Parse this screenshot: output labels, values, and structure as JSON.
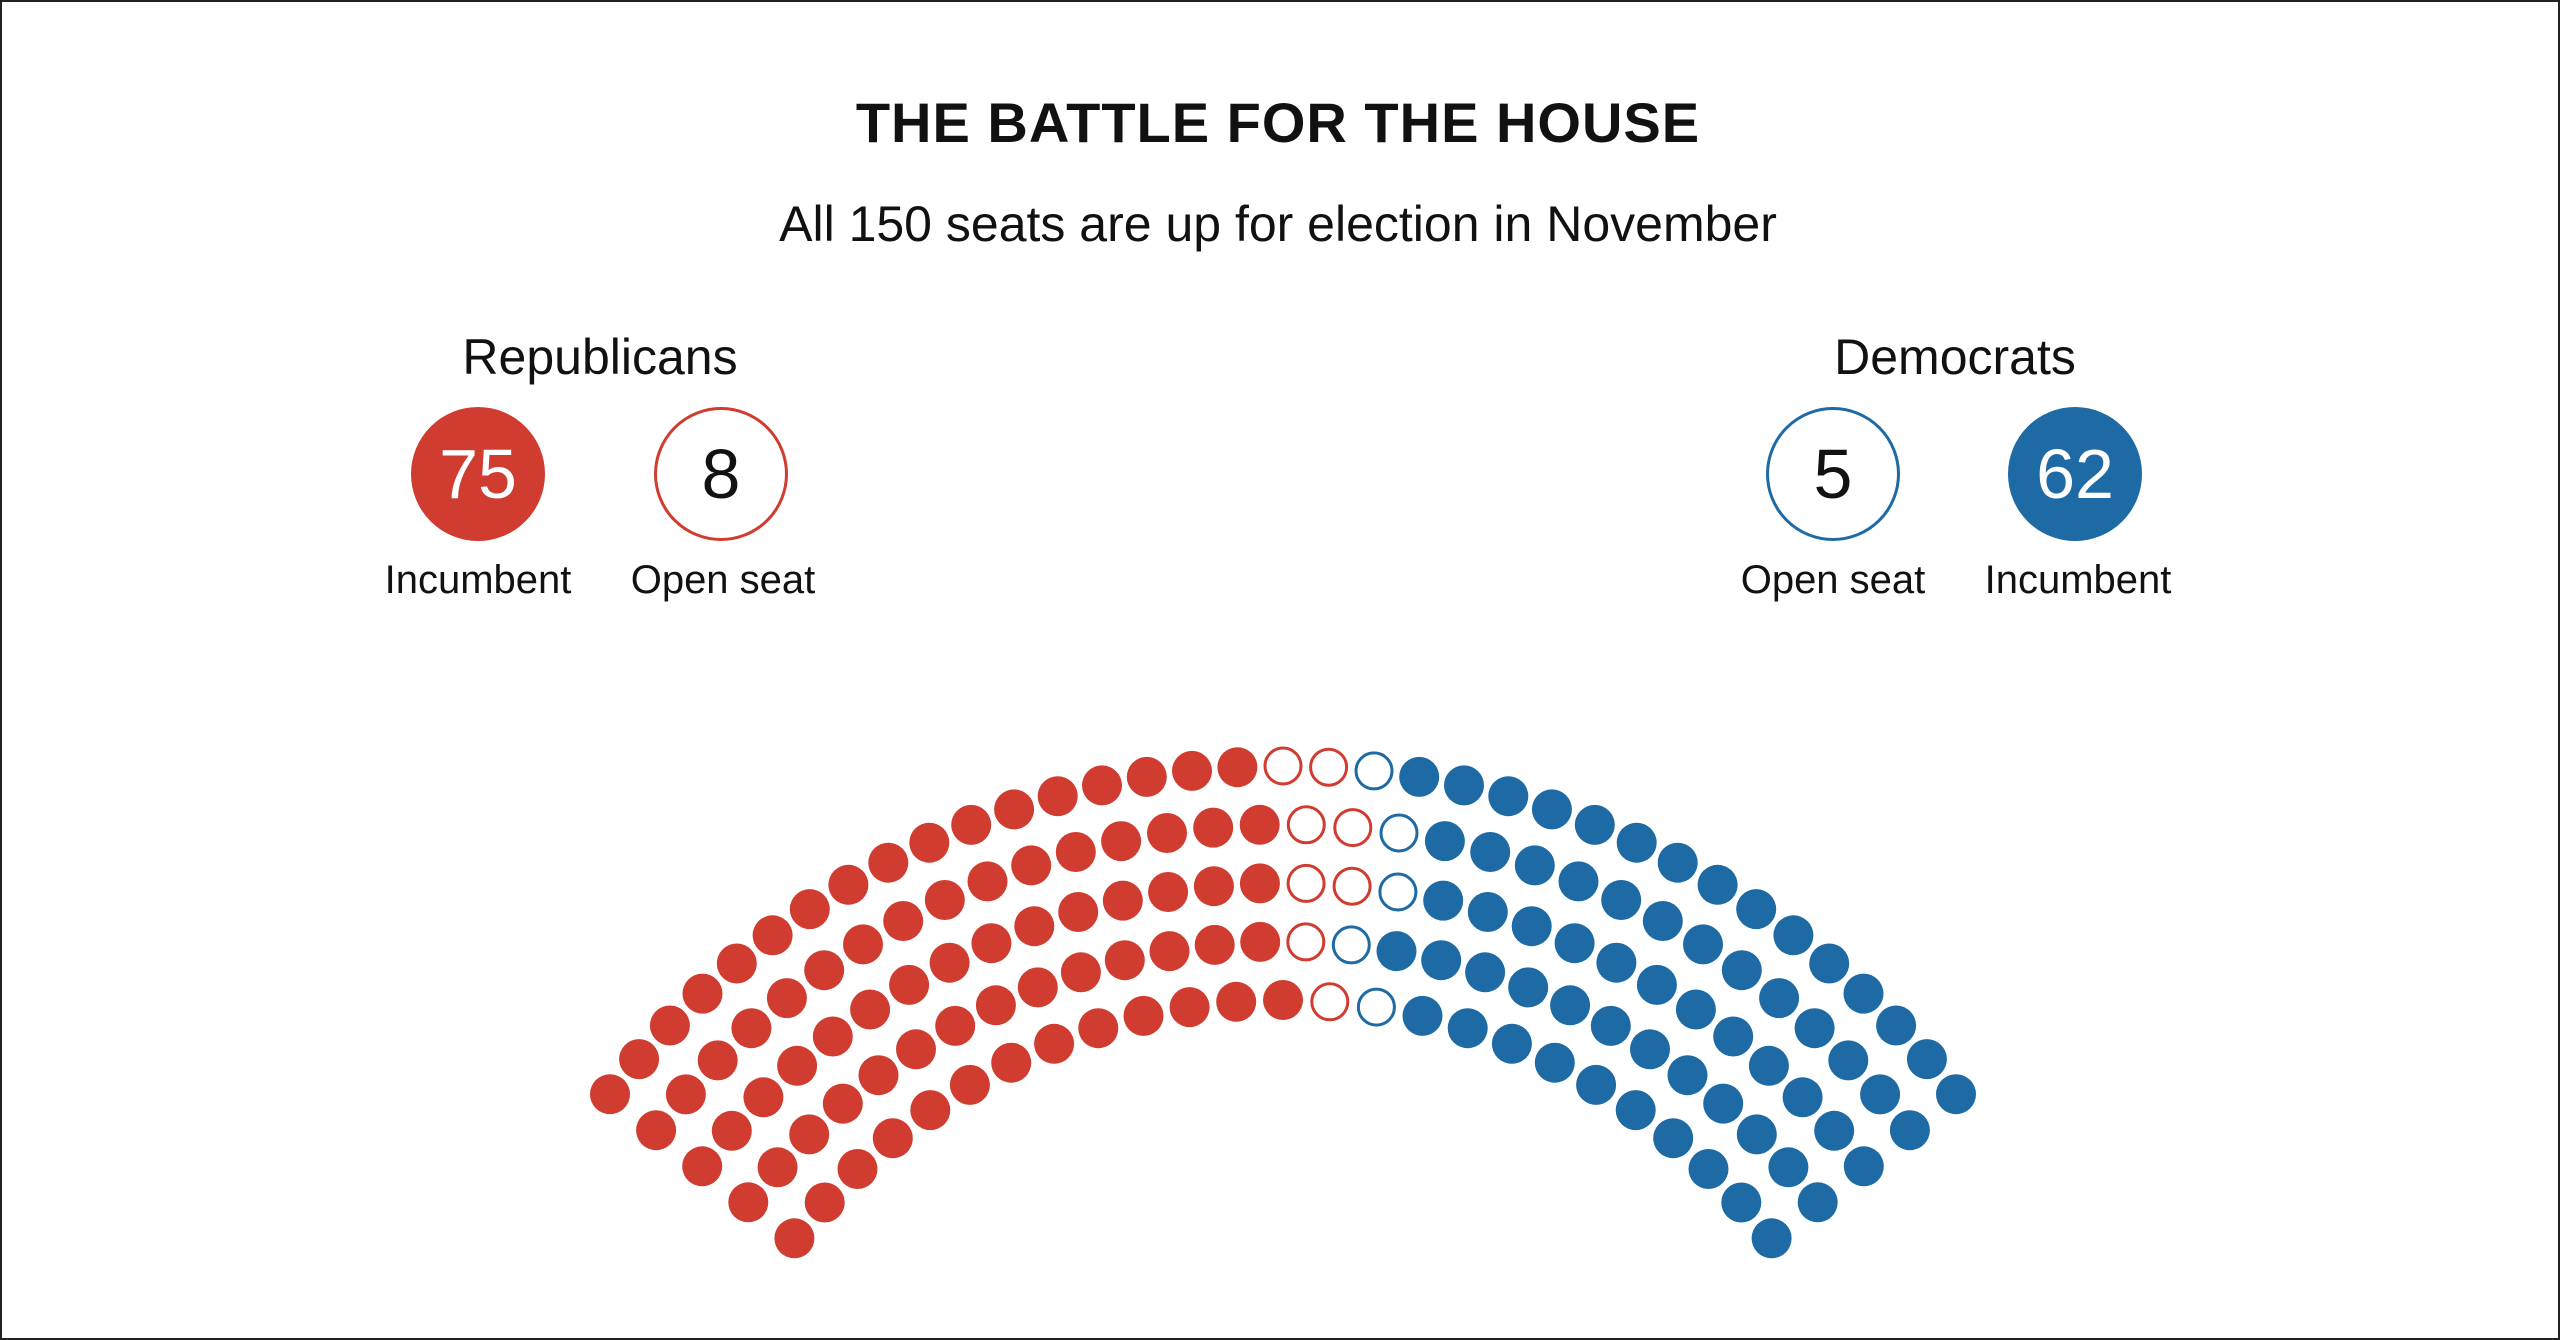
{
  "title": "THE BATTLE FOR THE HOUSE",
  "subtitle": "All 150 seats are up for election in November",
  "republicans": {
    "label": "Republicans",
    "incumbent": {
      "count": "75",
      "label": "Incumbent"
    },
    "open": {
      "count": "8",
      "label": "Open seat"
    }
  },
  "democrats": {
    "label": "Democrats",
    "open": {
      "count": "5",
      "label": "Open seat"
    },
    "incumbent": {
      "count": "62",
      "label": "Incumbent"
    }
  },
  "colors": {
    "republican": "#d03c2f",
    "democrat": "#1d6aa5",
    "open_fill": "#ffffff",
    "text": "#111111",
    "border": "#222222"
  },
  "chart_data": {
    "type": "parliament",
    "total_seats": 150,
    "rows": 5,
    "series": [
      {
        "name": "Republicans Incumbent",
        "value": 75,
        "style": "filled",
        "color": "#d03c2f"
      },
      {
        "name": "Republicans Open seat",
        "value": 8,
        "style": "outline",
        "color": "#d03c2f"
      },
      {
        "name": "Democrats Open seat",
        "value": 5,
        "style": "outline",
        "color": "#1d6aa5"
      },
      {
        "name": "Democrats Incumbent",
        "value": 62,
        "style": "filled",
        "color": "#1d6aa5"
      }
    ]
  }
}
